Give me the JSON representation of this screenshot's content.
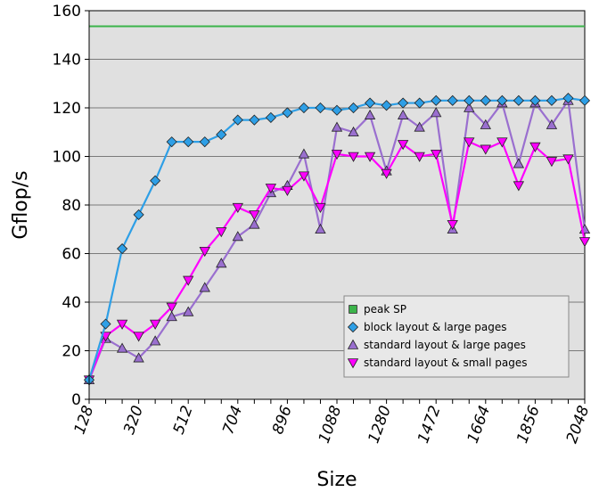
{
  "chart_data": {
    "type": "line",
    "title": "",
    "xlabel": "Size",
    "ylabel": "Gflop/s",
    "ylim": [
      0,
      160
    ],
    "yticks": [
      "0",
      "20",
      "40",
      "60",
      "80",
      "100",
      "120",
      "140",
      "160"
    ],
    "xlim": [
      128,
      2048
    ],
    "xticks": [
      "128",
      "320",
      "512",
      "704",
      "896",
      "1088",
      "1280",
      "1472",
      "1664",
      "1856",
      "2048"
    ],
    "grid": "horizontal",
    "legend_position": "bottom-right",
    "x": [
      128,
      192,
      256,
      320,
      384,
      448,
      512,
      576,
      640,
      704,
      768,
      832,
      896,
      960,
      1024,
      1088,
      1152,
      1216,
      1280,
      1344,
      1408,
      1472,
      1536,
      1600,
      1664,
      1728,
      1792,
      1856,
      1920,
      1984,
      2048
    ],
    "series": [
      {
        "name": "peak SP",
        "color": "#3cb44b",
        "marker": "none",
        "values": [
          153.6,
          153.6,
          153.6,
          153.6,
          153.6,
          153.6,
          153.6,
          153.6,
          153.6,
          153.6,
          153.6,
          153.6,
          153.6,
          153.6,
          153.6,
          153.6,
          153.6,
          153.6,
          153.6,
          153.6,
          153.6,
          153.6,
          153.6,
          153.6,
          153.6,
          153.6,
          153.6,
          153.6,
          153.6,
          153.6,
          153.6
        ]
      },
      {
        "name": "block layout & large pages",
        "color": "#2e9fe6",
        "marker": "diamond",
        "values": [
          8,
          31,
          62,
          76,
          90,
          106,
          106,
          106,
          109,
          115,
          115,
          116,
          118,
          120,
          120,
          119,
          120,
          122,
          121,
          122,
          122,
          123,
          123,
          123,
          123,
          123,
          123,
          123,
          123,
          124,
          123
        ]
      },
      {
        "name": "standard layout & large pages",
        "color": "#9a6fcf",
        "marker": "triangle-up",
        "values": [
          8,
          25,
          21,
          17,
          24,
          34,
          36,
          46,
          56,
          67,
          72,
          85,
          88,
          101,
          70,
          112,
          110,
          117,
          94,
          117,
          112,
          118,
          70,
          120,
          113,
          122,
          97,
          122,
          113,
          123,
          70
        ]
      },
      {
        "name": "standard layout & small pages",
        "color": "#ff00ff",
        "marker": "triangle-down",
        "values": [
          8,
          26,
          31,
          26,
          31,
          38,
          49,
          61,
          69,
          79,
          76,
          87,
          86,
          92,
          79,
          101,
          100,
          100,
          93,
          105,
          100,
          101,
          72,
          106,
          103,
          106,
          88,
          104,
          98,
          99,
          65
        ]
      }
    ]
  }
}
